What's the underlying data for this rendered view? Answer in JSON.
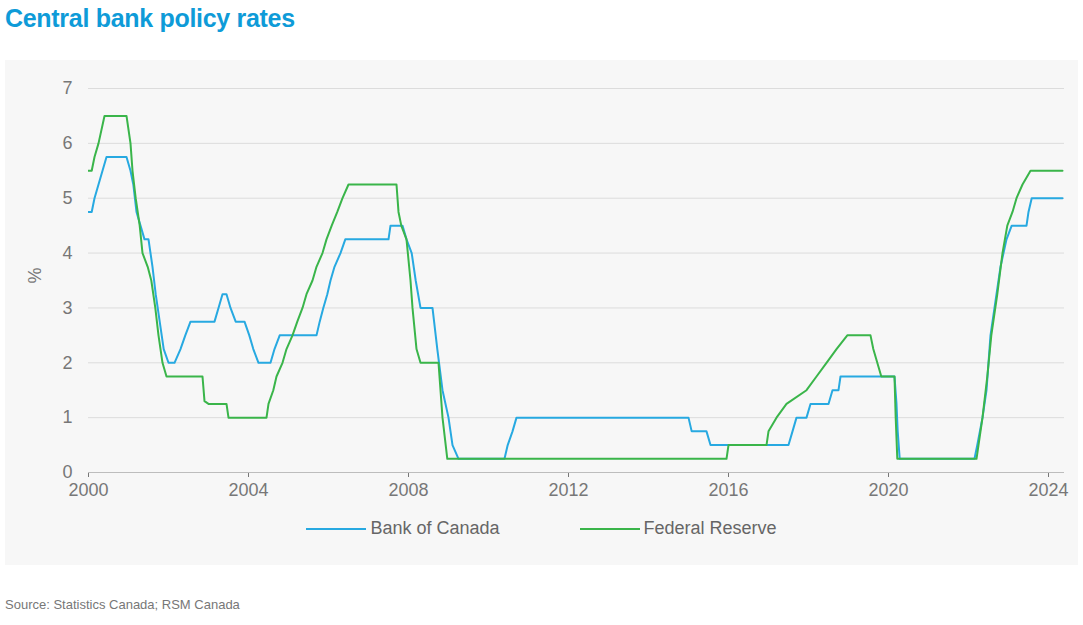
{
  "chart_data": {
    "type": "line",
    "title": "Central bank policy rates",
    "y_label": "%",
    "source": "Source: Statistics Canada; RSM Canada",
    "xlim": [
      2000,
      2024.4
    ],
    "xticks": [
      2000,
      2004,
      2008,
      2012,
      2016,
      2020,
      2024
    ],
    "ylim": [
      0,
      7
    ],
    "yticks": [
      0,
      1,
      2,
      3,
      4,
      5,
      6,
      7
    ],
    "grid": true,
    "legend": "bottom",
    "series": [
      {
        "name": "Bank of Canada",
        "color": "#27a9e1",
        "x": [
          2000.0,
          2000.08,
          2000.15,
          2000.25,
          2000.35,
          2000.45,
          2000.95,
          2001.05,
          2001.12,
          2001.2,
          2001.3,
          2001.4,
          2001.5,
          2001.6,
          2001.68,
          2001.78,
          2001.88,
          2002.0,
          2002.15,
          2002.3,
          2002.42,
          2002.55,
          2003.15,
          2003.25,
          2003.35,
          2003.45,
          2003.55,
          2003.68,
          2003.9,
          2004.02,
          2004.12,
          2004.25,
          2004.55,
          2004.65,
          2004.78,
          2005.7,
          2005.78,
          2005.87,
          2005.97,
          2006.05,
          2006.15,
          2006.3,
          2006.42,
          2007.5,
          2007.55,
          2007.85,
          2007.95,
          2008.08,
          2008.18,
          2008.3,
          2008.6,
          2008.72,
          2008.85,
          2009.0,
          2009.1,
          2009.25,
          2010.4,
          2010.48,
          2010.6,
          2010.7,
          2015.0,
          2015.08,
          2015.45,
          2015.55,
          2017.5,
          2017.6,
          2017.7,
          2017.95,
          2018.05,
          2018.5,
          2018.6,
          2018.75,
          2018.8,
          2020.15,
          2020.2,
          2020.23,
          2020.28,
          2022.15,
          2022.22,
          2022.35,
          2022.45,
          2022.55,
          2022.7,
          2022.8,
          2022.95,
          2023.08,
          2023.45,
          2023.5,
          2023.58,
          2024.35
        ],
        "values": [
          4.75,
          4.75,
          5.0,
          5.25,
          5.5,
          5.75,
          5.75,
          5.5,
          5.25,
          4.75,
          4.5,
          4.25,
          4.25,
          3.75,
          3.25,
          2.75,
          2.25,
          2.0,
          2.0,
          2.25,
          2.5,
          2.75,
          2.75,
          3.0,
          3.25,
          3.25,
          3.0,
          2.75,
          2.75,
          2.5,
          2.25,
          2.0,
          2.0,
          2.25,
          2.5,
          2.5,
          2.75,
          3.0,
          3.25,
          3.5,
          3.75,
          4.0,
          4.25,
          4.25,
          4.5,
          4.5,
          4.25,
          4.0,
          3.5,
          3.0,
          3.0,
          2.25,
          1.5,
          1.0,
          0.5,
          0.25,
          0.25,
          0.5,
          0.75,
          1.0,
          1.0,
          0.75,
          0.75,
          0.5,
          0.5,
          0.75,
          1.0,
          1.0,
          1.25,
          1.25,
          1.5,
          1.5,
          1.75,
          1.75,
          1.25,
          0.75,
          0.25,
          0.25,
          0.5,
          1.0,
          1.5,
          2.5,
          3.25,
          3.75,
          4.25,
          4.5,
          4.5,
          4.75,
          5.0,
          5.0
        ]
      },
      {
        "name": "Federal Reserve",
        "color": "#3ab54a",
        "x": [
          2000.0,
          2000.08,
          2000.15,
          2000.25,
          2000.4,
          2000.95,
          2001.05,
          2001.1,
          2001.18,
          2001.28,
          2001.35,
          2001.48,
          2001.57,
          2001.67,
          2001.75,
          2001.85,
          2001.95,
          2002.85,
          2002.9,
          2003.0,
          2003.45,
          2003.5,
          2004.45,
          2004.5,
          2004.62,
          2004.7,
          2004.85,
          2004.95,
          2005.1,
          2005.22,
          2005.35,
          2005.45,
          2005.6,
          2005.7,
          2005.85,
          2005.95,
          2006.08,
          2006.22,
          2006.35,
          2006.5,
          2007.7,
          2007.75,
          2007.82,
          2007.95,
          2008.05,
          2008.1,
          2008.2,
          2008.3,
          2008.75,
          2008.8,
          2008.85,
          2008.97,
          2015.95,
          2016.0,
          2016.95,
          2017.0,
          2017.2,
          2017.45,
          2017.95,
          2018.2,
          2018.45,
          2018.7,
          2018.97,
          2019.55,
          2019.62,
          2019.72,
          2019.82,
          2020.15,
          2020.18,
          2020.22,
          2022.2,
          2022.25,
          2022.35,
          2022.47,
          2022.57,
          2022.72,
          2022.85,
          2022.97,
          2023.1,
          2023.2,
          2023.35,
          2023.55,
          2024.35
        ],
        "values": [
          5.5,
          5.5,
          5.75,
          6.0,
          6.5,
          6.5,
          6.0,
          5.5,
          5.0,
          4.5,
          4.0,
          3.75,
          3.5,
          3.0,
          2.5,
          2.0,
          1.75,
          1.75,
          1.3,
          1.25,
          1.25,
          1.0,
          1.0,
          1.25,
          1.5,
          1.75,
          2.0,
          2.25,
          2.5,
          2.75,
          3.0,
          3.25,
          3.5,
          3.75,
          4.0,
          4.25,
          4.5,
          4.75,
          5.0,
          5.25,
          5.25,
          4.75,
          4.5,
          4.25,
          3.5,
          3.0,
          2.25,
          2.0,
          2.0,
          1.5,
          1.0,
          0.25,
          0.25,
          0.5,
          0.5,
          0.75,
          1.0,
          1.25,
          1.5,
          1.75,
          2.0,
          2.25,
          2.5,
          2.5,
          2.25,
          2.0,
          1.75,
          1.75,
          1.0,
          0.25,
          0.25,
          0.5,
          1.0,
          1.75,
          2.5,
          3.25,
          4.0,
          4.5,
          4.75,
          5.0,
          5.25,
          5.5,
          5.5
        ]
      }
    ]
  }
}
